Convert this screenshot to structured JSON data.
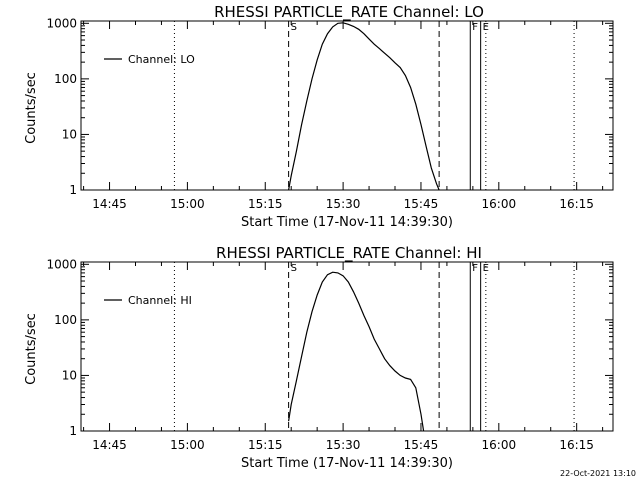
{
  "footer": {
    "date": "22-Oct-2021 13:10"
  },
  "chart_data": [
    {
      "type": "line",
      "title": "RHESSI PARTICLE_RATE Channel: LO",
      "xlabel": "Start Time (17-Nov-11 14:39:30)",
      "ylabel": "Counts/sec",
      "yscale": "log",
      "xlim": [
        "14:39:30",
        "16:22:00"
      ],
      "ylim": [
        1,
        1100
      ],
      "x_ticks": [
        "14:45",
        "15:00",
        "15:15",
        "15:30",
        "15:45",
        "16:00",
        "16:15"
      ],
      "y_ticks": [
        "1",
        "10",
        "100",
        "1000"
      ],
      "legend": {
        "label": "Channel: LO",
        "position": "top-left"
      },
      "markers": [
        {
          "label": "S",
          "time": "15:19:30",
          "style": "dashed"
        },
        {
          "label": "",
          "time": "15:48:30",
          "style": "dashed"
        },
        {
          "label": "F",
          "time": "15:54:30",
          "style": "solid"
        },
        {
          "label": "E",
          "time": "15:56:30",
          "style": "solid"
        },
        {
          "label": "",
          "time": "14:57:30",
          "style": "dotted"
        },
        {
          "label": "",
          "time": "15:57:30",
          "style": "dotted"
        },
        {
          "label": "",
          "time": "16:14:30",
          "style": "dotted"
        }
      ],
      "series": [
        {
          "x": [
            "15:19:30",
            "15:20:00",
            "15:21:00",
            "15:22:00",
            "15:23:00",
            "15:24:00",
            "15:25:00",
            "15:26:00",
            "15:27:00",
            "15:28:00",
            "15:29:00",
            "15:30:00",
            "15:31:00",
            "15:32:00",
            "15:33:00",
            "15:34:00",
            "15:35:00",
            "15:36:00",
            "15:37:00",
            "15:38:00",
            "15:39:00",
            "15:40:00",
            "15:41:00",
            "15:42:00",
            "15:43:00",
            "15:44:00",
            "15:45:00",
            "15:46:00",
            "15:47:00",
            "15:48:00",
            "15:48:30"
          ],
          "y": [
            1,
            1.8,
            5,
            15,
            40,
            100,
            220,
            420,
            650,
            860,
            1000,
            1020,
            960,
            880,
            780,
            650,
            520,
            420,
            350,
            290,
            240,
            195,
            160,
            115,
            70,
            35,
            15,
            6,
            2.5,
            1.3,
            1
          ]
        }
      ]
    },
    {
      "type": "line",
      "title": "RHESSI PARTICLE_RATE Channel: HI",
      "xlabel": "Start Time (17-Nov-11 14:39:30)",
      "ylabel": "Counts/sec",
      "yscale": "log",
      "xlim": [
        "14:39:30",
        "16:22:00"
      ],
      "ylim": [
        1,
        1100
      ],
      "x_ticks": [
        "14:45",
        "15:00",
        "15:15",
        "15:30",
        "15:45",
        "16:00",
        "16:15"
      ],
      "y_ticks": [
        "1",
        "10",
        "100",
        "1000"
      ],
      "legend": {
        "label": "Channel: HI",
        "position": "top-left"
      },
      "markers": [
        {
          "label": "S",
          "time": "15:19:30",
          "style": "dashed"
        },
        {
          "label": "",
          "time": "15:48:30",
          "style": "dashed"
        },
        {
          "label": "F",
          "time": "15:54:30",
          "style": "solid"
        },
        {
          "label": "E",
          "time": "15:56:30",
          "style": "solid"
        },
        {
          "label": "",
          "time": "14:57:30",
          "style": "dotted"
        },
        {
          "label": "",
          "time": "15:57:30",
          "style": "dotted"
        },
        {
          "label": "",
          "time": "16:14:30",
          "style": "dotted"
        }
      ],
      "series": [
        {
          "x": [
            "15:19:30",
            "15:20:00",
            "15:21:00",
            "15:22:00",
            "15:23:00",
            "15:24:00",
            "15:25:00",
            "15:26:00",
            "15:27:00",
            "15:28:00",
            "15:29:00",
            "15:30:00",
            "15:31:00",
            "15:32:00",
            "15:33:00",
            "15:34:00",
            "15:35:00",
            "15:36:00",
            "15:37:00",
            "15:38:00",
            "15:39:00",
            "15:40:00",
            "15:41:00",
            "15:42:00",
            "15:43:00",
            "15:44:00",
            "15:45:00",
            "15:45:30"
          ],
          "y": [
            1.5,
            3,
            8,
            22,
            60,
            140,
            280,
            480,
            650,
            720,
            700,
            620,
            480,
            320,
            200,
            120,
            75,
            45,
            30,
            20,
            15,
            12,
            10,
            9,
            8.5,
            6,
            2,
            1
          ]
        }
      ]
    }
  ]
}
